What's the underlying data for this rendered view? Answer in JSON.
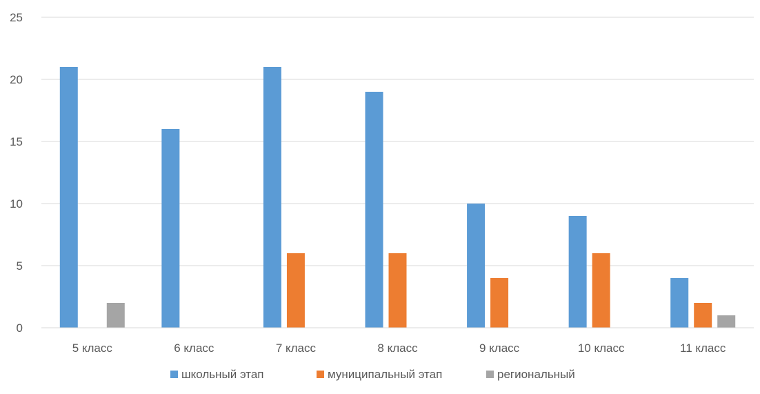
{
  "chart_data": {
    "type": "bar",
    "categories": [
      "5 класс",
      "6 класс",
      "7 класс",
      "8 класс",
      "9 класс",
      "10 класс",
      "11 класс"
    ],
    "series": [
      {
        "name": "школьный этап",
        "values": [
          21,
          16,
          21,
          19,
          10,
          9,
          4
        ],
        "color": "#5B9BD5"
      },
      {
        "name": "муниципальный этап",
        "values": [
          0,
          0,
          6,
          6,
          4,
          6,
          2
        ],
        "color": "#ED7D31"
      },
      {
        "name": "региональный",
        "values": [
          2,
          0,
          0,
          0,
          0,
          0,
          1
        ],
        "color": "#A5A5A5"
      }
    ],
    "ylim": [
      0,
      25
    ],
    "yticks": [
      0,
      5,
      10,
      15,
      20,
      25
    ],
    "grid": true,
    "legend": "bottom",
    "gridColor": "#D9D9D9",
    "textColor": "#595959"
  }
}
